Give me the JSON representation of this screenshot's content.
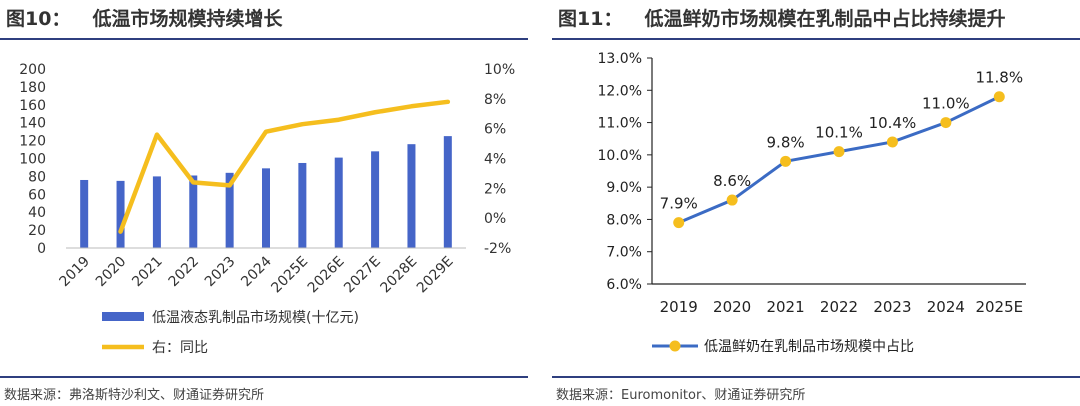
{
  "left": {
    "title_num": "图10：",
    "title_text": "低温市场规模持续增长",
    "source": "数据来源：弗洛斯特沙利文、财通证券研究所"
  },
  "right": {
    "title_num": "图11：",
    "title_text": "低温鲜奶市场规模在乳制品中占比持续提升",
    "source": "数据来源：Euromonitor、财通证券研究所"
  },
  "chart_data": [
    {
      "type": "bar",
      "title": "低温市场规模持续增长",
      "categories": [
        "2019",
        "2020",
        "2021",
        "2022",
        "2023",
        "2024",
        "2025E",
        "2026E",
        "2027E",
        "2028E",
        "2029E"
      ],
      "series": [
        {
          "name": "低温液态乳制品市场规模(十亿元)",
          "type": "bar",
          "axis": "left",
          "color": "#4565c8",
          "values": [
            76,
            75,
            80,
            81,
            84,
            89,
            95,
            101,
            108,
            116,
            125
          ]
        },
        {
          "name": "右：同比",
          "type": "line",
          "axis": "right",
          "color": "#f5be1e",
          "values": [
            null,
            -0.9,
            5.6,
            2.4,
            2.2,
            5.8,
            6.3,
            6.6,
            7.1,
            7.5,
            7.8
          ]
        }
      ],
      "ylim_left": [
        0,
        200
      ],
      "yticks_left": [
        "0",
        "20",
        "40",
        "60",
        "80",
        "100",
        "120",
        "140",
        "160",
        "180",
        "200"
      ],
      "ylim_right": [
        -2,
        10
      ],
      "yticks_right": [
        "-2%",
        "0%",
        "2%",
        "4%",
        "6%",
        "8%",
        "10%"
      ],
      "legend": "bottom",
      "grid": false
    },
    {
      "type": "line",
      "title": "低温鲜奶市场规模在乳制品中占比持续提升",
      "categories": [
        "2019",
        "2020",
        "2021",
        "2022",
        "2023",
        "2024",
        "2025E"
      ],
      "series": [
        {
          "name": "低温鲜奶在乳制品市场规模中占比",
          "color": "#3b6bc4",
          "marker_color": "#f5be1e",
          "values": [
            7.9,
            8.6,
            9.8,
            10.1,
            10.4,
            11.0,
            11.8
          ],
          "labels": [
            "7.9%",
            "8.6%",
            "9.8%",
            "10.1%",
            "10.4%",
            "11.0%",
            "11.8%"
          ]
        }
      ],
      "ylim": [
        6.0,
        13.0
      ],
      "yticks": [
        "6.0%",
        "7.0%",
        "8.0%",
        "9.0%",
        "10.0%",
        "11.0%",
        "12.0%",
        "13.0%"
      ],
      "legend": "bottom",
      "grid": false
    }
  ]
}
